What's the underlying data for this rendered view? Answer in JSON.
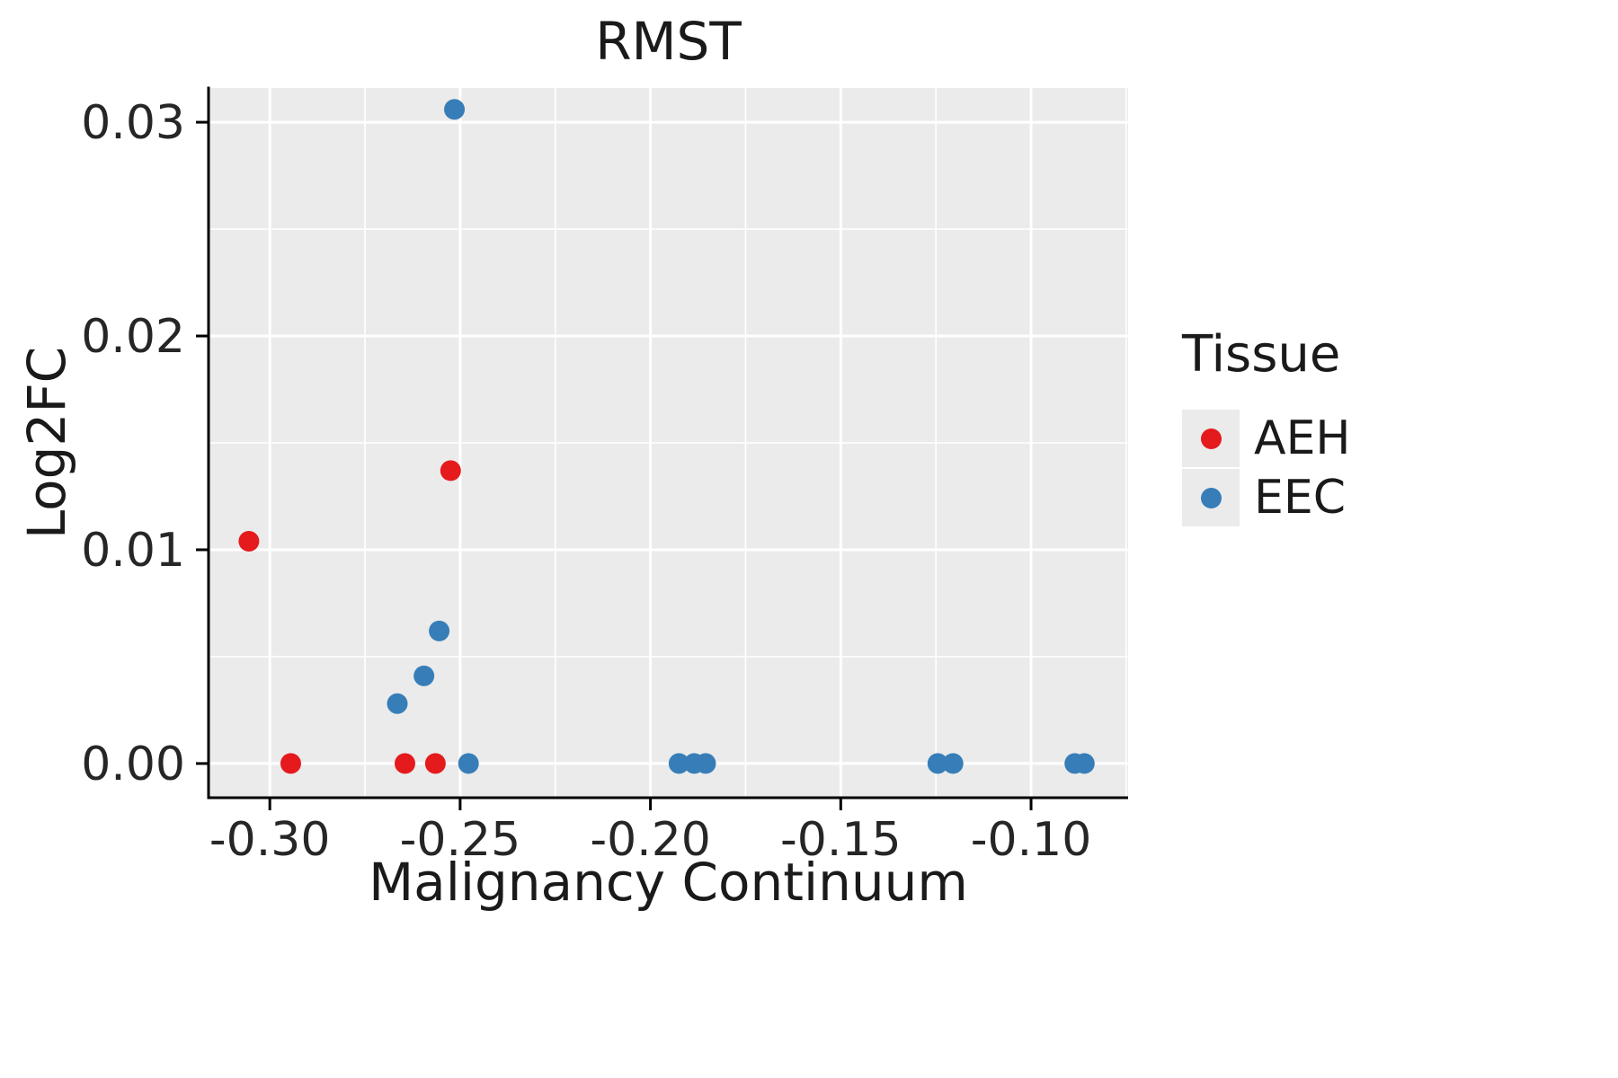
{
  "chart_data": {
    "type": "scatter",
    "title": "RMST",
    "xlabel": "Malignancy Continuum",
    "ylabel": "Log2FC",
    "legend_title": "Tissue",
    "legend_position": "right",
    "grid": true,
    "panel_bg": "#EBEBEB",
    "grid_color": "#FFFFFF",
    "axis_color": "#000000",
    "tick_label_color": "#262626",
    "xlim": [
      -0.3161,
      -0.0745
    ],
    "ylim": [
      -0.0016,
      0.0316
    ],
    "x_ticks": [
      {
        "v": -0.3,
        "label": "-0.30"
      },
      {
        "v": -0.25,
        "label": "-0.25"
      },
      {
        "v": -0.2,
        "label": "-0.20"
      },
      {
        "v": -0.15,
        "label": "-0.15"
      },
      {
        "v": -0.1,
        "label": "-0.10"
      }
    ],
    "y_ticks": [
      {
        "v": 0.0,
        "label": "0.00"
      },
      {
        "v": 0.01,
        "label": "0.01"
      },
      {
        "v": 0.02,
        "label": "0.02"
      },
      {
        "v": 0.03,
        "label": "0.03"
      }
    ],
    "x_minor_ticks": [
      -0.275,
      -0.225,
      -0.175,
      -0.125,
      -0.075
    ],
    "y_minor_ticks": [
      0.005,
      0.015,
      0.025
    ],
    "series": [
      {
        "name": "AEH",
        "color": "#E41A1C",
        "points": [
          [
            -0.3055,
            0.0104
          ],
          [
            -0.2945,
            0.0
          ],
          [
            -0.2645,
            0.0
          ],
          [
            -0.2565,
            0.0
          ],
          [
            -0.2525,
            0.0137
          ]
        ]
      },
      {
        "name": "EEC",
        "color": "#377EB8",
        "points": [
          [
            -0.2515,
            0.0306
          ],
          [
            -0.2665,
            0.0028
          ],
          [
            -0.2595,
            0.0041
          ],
          [
            -0.2555,
            0.0062
          ],
          [
            -0.2478,
            0.0
          ],
          [
            -0.1925,
            0.0
          ],
          [
            -0.1885,
            0.0
          ],
          [
            -0.1855,
            0.0
          ],
          [
            -0.1245,
            0.0
          ],
          [
            -0.1205,
            0.0
          ],
          [
            -0.0885,
            0.0
          ],
          [
            -0.086,
            0.0
          ]
        ]
      }
    ]
  }
}
